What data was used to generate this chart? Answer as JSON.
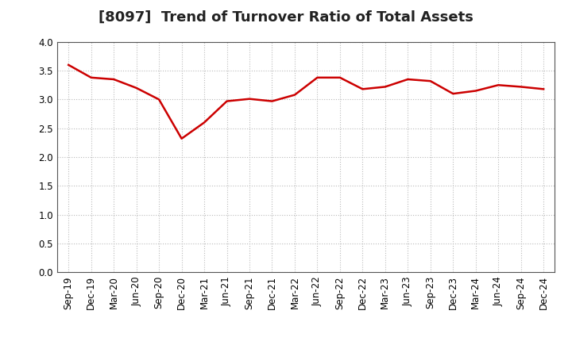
{
  "title": "[8097]  Trend of Turnover Ratio of Total Assets",
  "labels": [
    "Sep-19",
    "Dec-19",
    "Mar-20",
    "Jun-20",
    "Sep-20",
    "Dec-20",
    "Mar-21",
    "Jun-21",
    "Sep-21",
    "Dec-21",
    "Mar-22",
    "Jun-22",
    "Sep-22",
    "Dec-22",
    "Mar-23",
    "Jun-23",
    "Sep-23",
    "Dec-23",
    "Mar-24",
    "Jun-24",
    "Sep-24",
    "Dec-24"
  ],
  "values": [
    3.6,
    3.38,
    3.35,
    3.2,
    3.0,
    2.32,
    2.6,
    2.97,
    3.01,
    2.97,
    3.08,
    3.38,
    3.38,
    3.18,
    3.22,
    3.35,
    3.32,
    3.1,
    3.15,
    3.25,
    3.22,
    3.18
  ],
  "line_color": "#cc0000",
  "line_width": 1.8,
  "ylim": [
    0.0,
    4.0
  ],
  "yticks": [
    0.0,
    0.5,
    1.0,
    1.5,
    2.0,
    2.5,
    3.0,
    3.5,
    4.0
  ],
  "grid_color": "#bbbbbb",
  "bg_color": "#ffffff",
  "title_fontsize": 13,
  "tick_fontsize": 8.5,
  "title_color": "#222222",
  "spine_color": "#555555"
}
